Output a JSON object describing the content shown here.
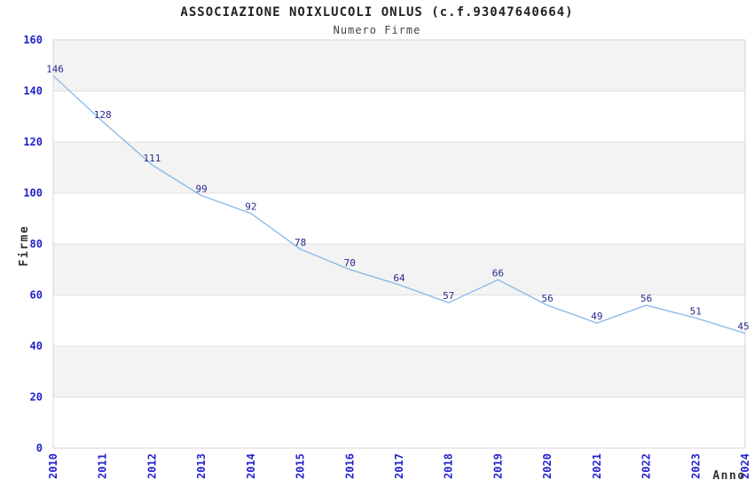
{
  "header": {
    "title": "ASSOCIAZIONE NOIXLUCOLI ONLUS (c.f.93047640664)",
    "subtitle": "Numero Firme"
  },
  "chart_data": {
    "type": "line",
    "title": "ASSOCIAZIONE NOIXLUCOLI ONLUS (c.f.93047640664)",
    "subtitle": "Numero Firme",
    "xlabel": "Anno",
    "ylabel": "Firme",
    "categories": [
      "2010",
      "2011",
      "2012",
      "2013",
      "2014",
      "2015",
      "2016",
      "2017",
      "2018",
      "2019",
      "2020",
      "2021",
      "2022",
      "2023",
      "2024"
    ],
    "series": [
      {
        "name": "Numero Firme",
        "values": [
          146,
          128,
          111,
          99,
          92,
          78,
          70,
          64,
          57,
          66,
          56,
          49,
          56,
          51,
          45
        ]
      }
    ],
    "data_labels_shown": true,
    "ylim": [
      0,
      160
    ],
    "ytick_step": 20,
    "yticks": [
      0,
      20,
      40,
      60,
      80,
      100,
      120,
      140,
      160
    ],
    "grid": "horizontal-bands",
    "legend_position": "none"
  },
  "style": {
    "line_color": "#86b7e8",
    "data_label_color": "#28288e",
    "tick_label_color": "#2222cc",
    "axis_title_color": "#333333",
    "title_color": "#222222",
    "subtitle_color": "#444444",
    "band_color": "#f3f3f3",
    "grid_color": "#e0e0e0",
    "border_color": "#d4d4d4",
    "background_color": "#ffffff"
  }
}
